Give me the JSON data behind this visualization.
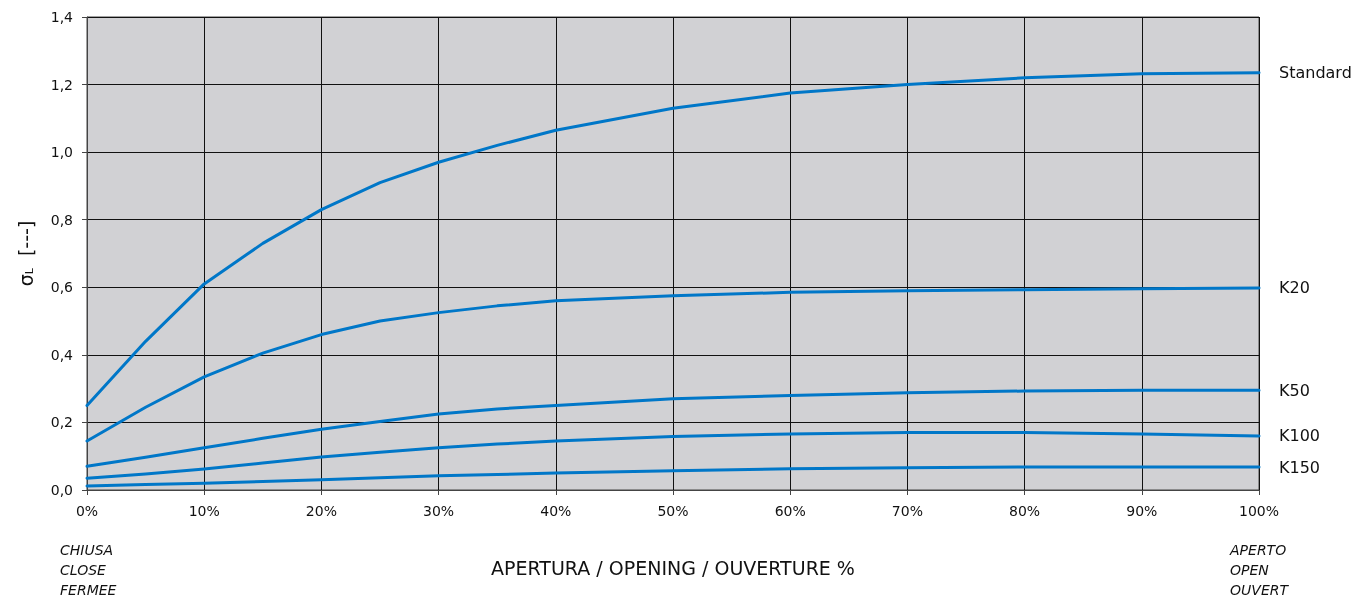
{
  "chart_data": {
    "type": "line",
    "xlabel": "APERTURA / OPENING / OUVERTURE %",
    "ylabel": "σ$_{L}$  [---]",
    "x": [
      0,
      5,
      10,
      15,
      20,
      25,
      30,
      35,
      40,
      50,
      60,
      70,
      80,
      90,
      100
    ],
    "series": [
      {
        "name": "Standard",
        "color": "#0077c8",
        "values": [
          0.25,
          0.44,
          0.61,
          0.73,
          0.83,
          0.91,
          0.97,
          1.02,
          1.065,
          1.13,
          1.175,
          1.2,
          1.22,
          1.232,
          1.235
        ]
      },
      {
        "name": "K20",
        "color": "#0077c8",
        "values": [
          0.145,
          0.245,
          0.335,
          0.405,
          0.46,
          0.5,
          0.525,
          0.545,
          0.56,
          0.575,
          0.585,
          0.59,
          0.593,
          0.596,
          0.598
        ]
      },
      {
        "name": "K50",
        "color": "#0077c8",
        "values": [
          0.07,
          0.097,
          0.125,
          0.153,
          0.18,
          0.203,
          0.225,
          0.24,
          0.25,
          0.27,
          0.28,
          0.288,
          0.293,
          0.295,
          0.295
        ]
      },
      {
        "name": "K100",
        "color": "#0077c8",
        "values": [
          0.035,
          0.047,
          0.062,
          0.08,
          0.098,
          0.112,
          0.125,
          0.136,
          0.145,
          0.158,
          0.166,
          0.17,
          0.17,
          0.166,
          0.16
        ]
      },
      {
        "name": "K150",
        "color": "#0077c8",
        "values": [
          0.012,
          0.016,
          0.02,
          0.025,
          0.03,
          0.036,
          0.042,
          0.046,
          0.05,
          0.057,
          0.063,
          0.066,
          0.068,
          0.068,
          0.068
        ]
      }
    ],
    "xlim": [
      0,
      100
    ],
    "xticks": [
      {
        "value": 0,
        "label": "0%"
      },
      {
        "value": 10,
        "label": "10%"
      },
      {
        "value": 20,
        "label": "20%"
      },
      {
        "value": 30,
        "label": "30%"
      },
      {
        "value": 40,
        "label": "40%"
      },
      {
        "value": 50,
        "label": "50%"
      },
      {
        "value": 60,
        "label": "60%"
      },
      {
        "value": 70,
        "label": "70%"
      },
      {
        "value": 80,
        "label": "80%"
      },
      {
        "value": 90,
        "label": "90%"
      },
      {
        "value": 100,
        "label": "100%"
      }
    ],
    "ylim": [
      0,
      1.4
    ],
    "yticks": [
      {
        "value": 0,
        "label": "0,0"
      },
      {
        "value": 0.2,
        "label": "0,2"
      },
      {
        "value": 0.4,
        "label": "0,4"
      },
      {
        "value": 0.6,
        "label": "0,6"
      },
      {
        "value": 0.8,
        "label": "0,8"
      },
      {
        "value": 1.0,
        "label": "1,0"
      },
      {
        "value": 1.2,
        "label": "1,2"
      },
      {
        "value": 1.4,
        "label": "1,4"
      }
    ],
    "grid": true,
    "marker": "none",
    "line_style": "solid",
    "legend": false,
    "annotations": [
      "CHIUSA\nCLOSE\nFERMEE",
      "APERTO\nOPEN\nOUVERT"
    ]
  }
}
